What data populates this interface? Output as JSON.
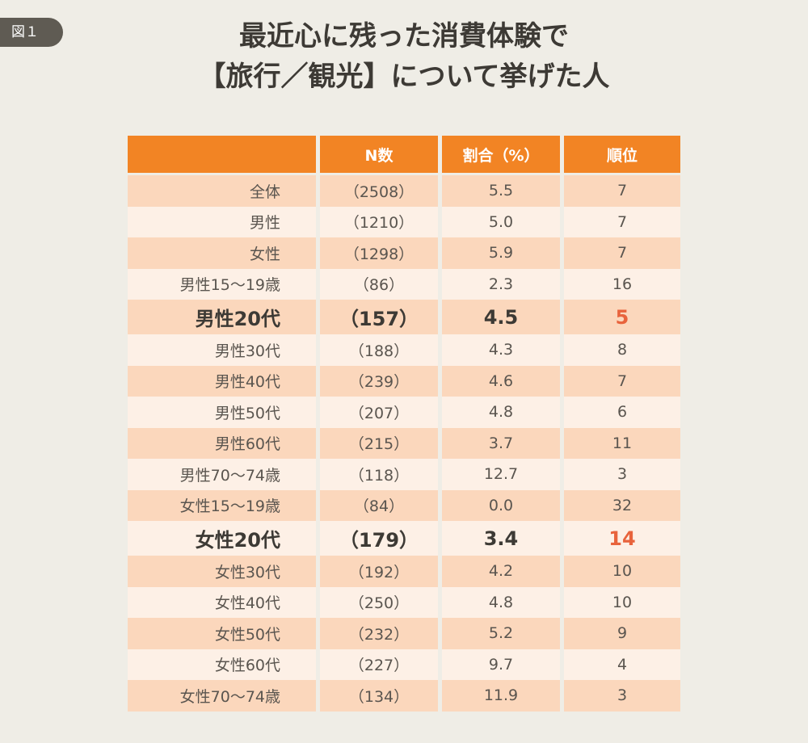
{
  "figure_badge": "図１",
  "title_lines": [
    "最近心に残った消費体験で",
    "【旅行／観光】について挙げた人"
  ],
  "chart_data": {
    "type": "table",
    "columns": [
      "",
      "N数",
      "割合（%）",
      "順位"
    ],
    "rows": [
      {
        "label": "全体",
        "n": "（2508）",
        "ratio": "5.5",
        "rank": "7"
      },
      {
        "label": "男性",
        "n": "（1210）",
        "ratio": "5.0",
        "rank": "7"
      },
      {
        "label": "女性",
        "n": "（1298）",
        "ratio": "5.9",
        "rank": "7"
      },
      {
        "label": "男性15～19歳",
        "n": "（86）",
        "ratio": "2.3",
        "rank": "16"
      },
      {
        "label": "男性20代",
        "n": "（157）",
        "ratio": "4.5",
        "rank": "5",
        "highlight": true
      },
      {
        "label": "男性30代",
        "n": "（188）",
        "ratio": "4.3",
        "rank": "8"
      },
      {
        "label": "男性40代",
        "n": "（239）",
        "ratio": "4.6",
        "rank": "7"
      },
      {
        "label": "男性50代",
        "n": "（207）",
        "ratio": "4.8",
        "rank": "6"
      },
      {
        "label": "男性60代",
        "n": "（215）",
        "ratio": "3.7",
        "rank": "11"
      },
      {
        "label": "男性70～74歳",
        "n": "（118）",
        "ratio": "12.7",
        "rank": "3"
      },
      {
        "label": "女性15～19歳",
        "n": "（84）",
        "ratio": "0.0",
        "rank": "32"
      },
      {
        "label": "女性20代",
        "n": "（179）",
        "ratio": "3.4",
        "rank": "14",
        "highlight": true
      },
      {
        "label": "女性30代",
        "n": "（192）",
        "ratio": "4.2",
        "rank": "10"
      },
      {
        "label": "女性40代",
        "n": "（250）",
        "ratio": "4.8",
        "rank": "10"
      },
      {
        "label": "女性50代",
        "n": "（232）",
        "ratio": "5.2",
        "rank": "9"
      },
      {
        "label": "女性60代",
        "n": "（227）",
        "ratio": "9.7",
        "rank": "4"
      },
      {
        "label": "女性70～74歳",
        "n": "（134）",
        "ratio": "11.9",
        "rank": "3"
      }
    ]
  },
  "colors": {
    "header": "#f28424",
    "row_dark": "#fbd7bc",
    "row_light": "#fdf0e6",
    "rank_highlight": "#e8633c",
    "background": "#efede6"
  }
}
